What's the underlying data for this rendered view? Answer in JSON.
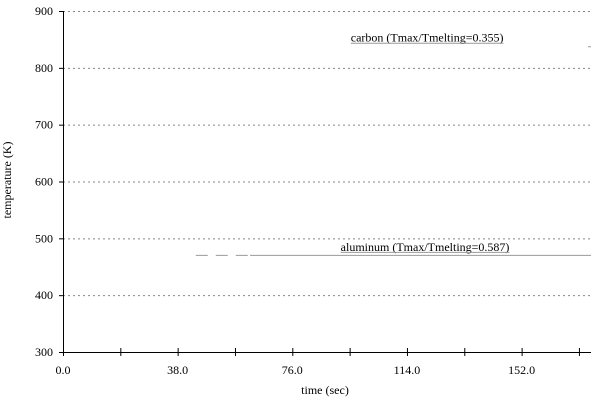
{
  "chart_data": {
    "type": "line",
    "title": "",
    "xlabel": "time (sec)",
    "ylabel": "temperature (K)",
    "xlim": [
      0,
      175
    ],
    "ylim": [
      300,
      900
    ],
    "x_ticks": [
      0,
      38,
      76,
      114,
      152
    ],
    "x_tick_labels": [
      "0.0",
      "38.0",
      "76.0",
      "114.0",
      "152.0"
    ],
    "y_ticks": [
      300,
      400,
      500,
      600,
      700,
      800,
      900
    ],
    "y_tick_labels": [
      "300",
      "400",
      "500",
      "600",
      "700",
      "800",
      "900"
    ],
    "grid": {
      "horizontal": true,
      "vertical": false,
      "style": "dotted"
    },
    "series": [
      {
        "name": "carbon (Tmax/Tmelting=0.355)",
        "color": "#999999",
        "x": [
          174,
          193
        ],
        "y": [
          838,
          838
        ]
      },
      {
        "name": "aluminum (Tmax/Tmelting=0.587)",
        "color": "#999999",
        "x": [
          44,
          62,
          175
        ],
        "y": [
          471,
          471,
          471
        ]
      }
    ],
    "annotations": [
      {
        "text": "carbon (Tmax/Tmelting=0.355)",
        "x": 146,
        "y": 846,
        "anchor": "end"
      },
      {
        "text": "aluminum (Tmax/Tmelting=0.587)",
        "x": 120,
        "y": 478,
        "anchor": "middle"
      }
    ]
  }
}
